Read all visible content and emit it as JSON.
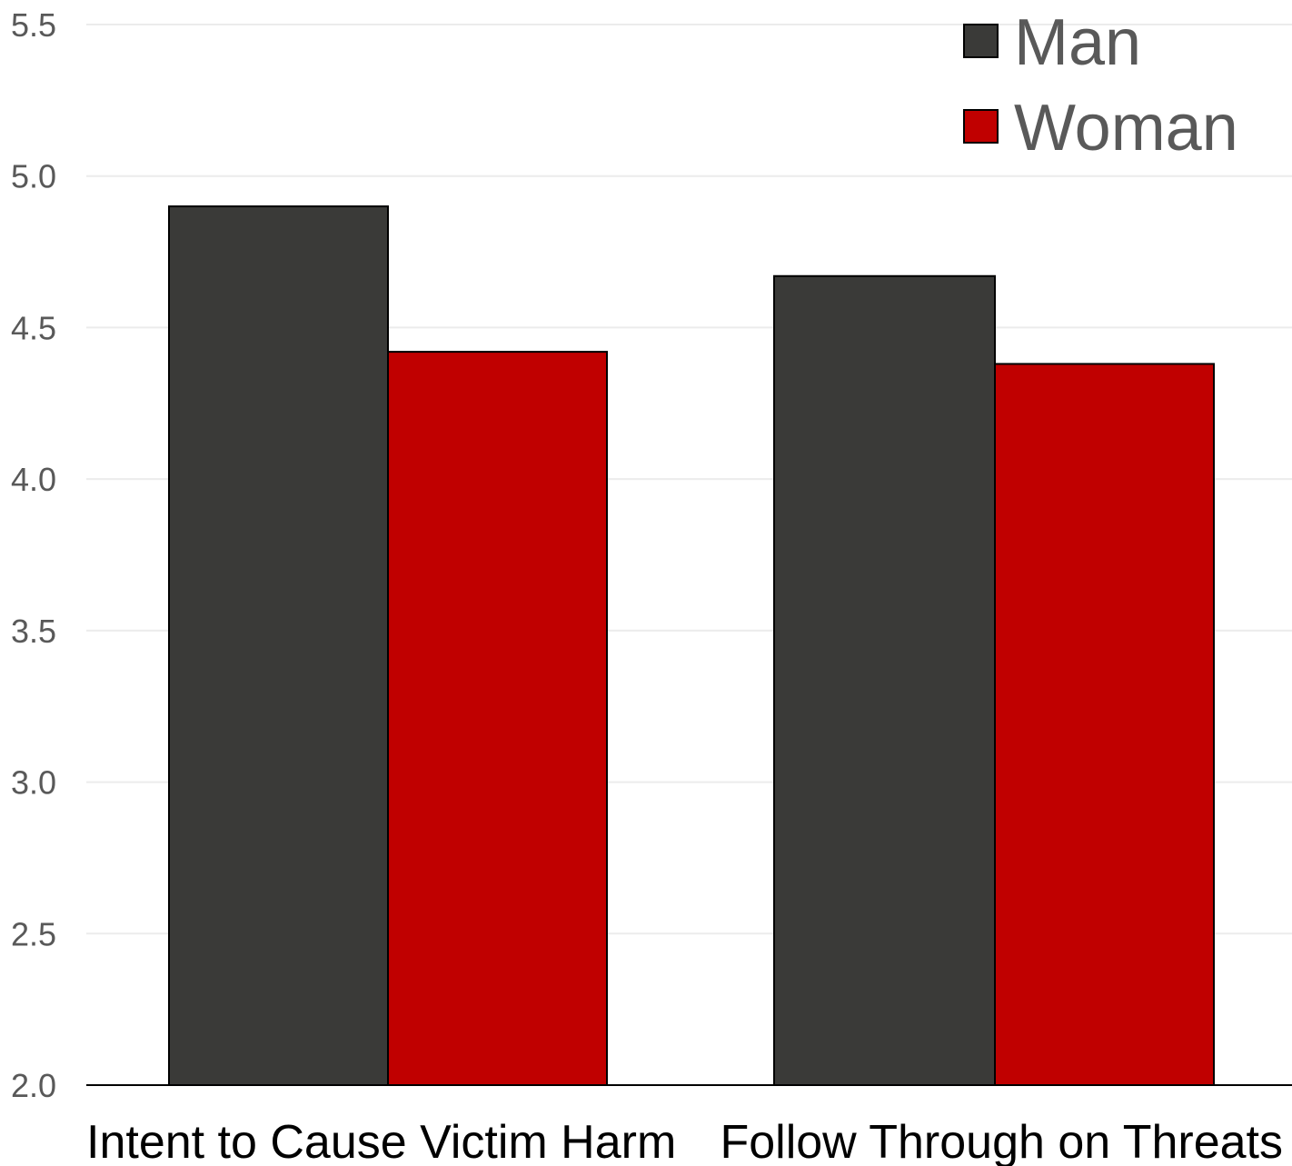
{
  "chart_data": {
    "type": "bar",
    "categories": [
      "Intent to Cause Victim Harm",
      "Follow Through on Threats"
    ],
    "series": [
      {
        "name": "Man",
        "color": "#3a3a38",
        "values": [
          4.9,
          4.67
        ]
      },
      {
        "name": "Woman",
        "color": "#c00000",
        "values": [
          4.42,
          4.38
        ]
      }
    ],
    "ylim": [
      2.0,
      5.5
    ],
    "yticks": [
      "2.0",
      "2.5",
      "3.0",
      "3.5",
      "4.0",
      "4.5",
      "5.0",
      "5.5"
    ],
    "grid": true,
    "legend_position": "top-right",
    "title": "",
    "xlabel": "",
    "ylabel": ""
  }
}
